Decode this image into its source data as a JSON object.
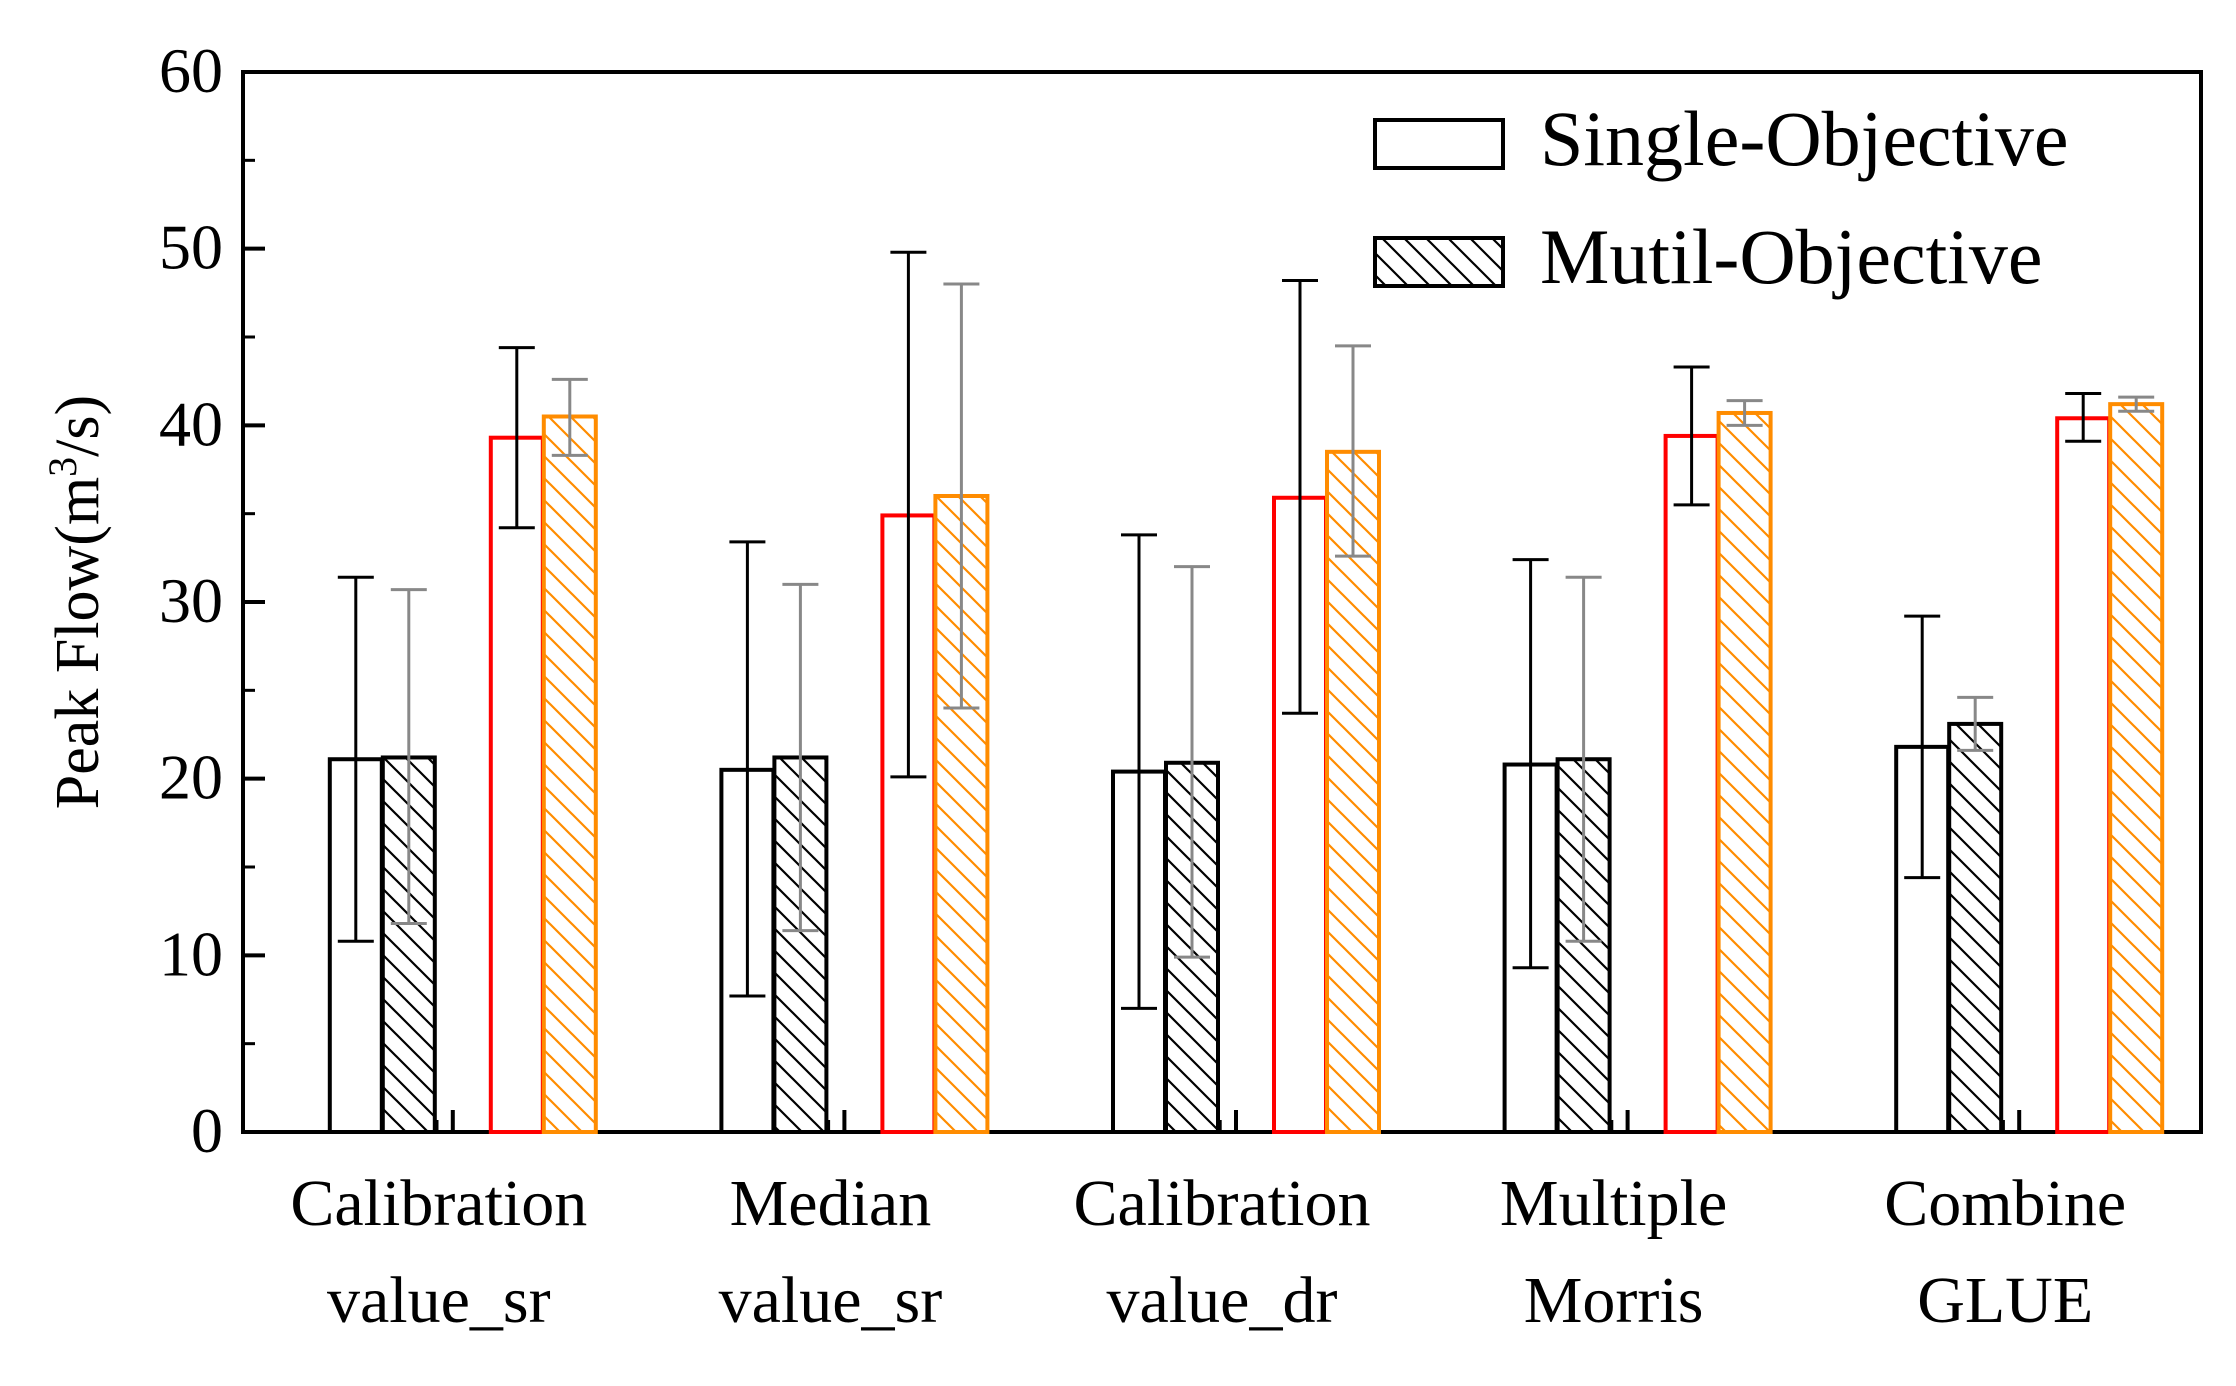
{
  "chart_data": {
    "type": "bar",
    "title": "",
    "ylabel": "Peak Flow(m³/s)",
    "ylabel_parts": {
      "before": "Peak Flow(m",
      "sup": "3",
      "after": "/s)"
    },
    "xlabel": "",
    "ylim": [
      0,
      60
    ],
    "yticks": [
      "0",
      "10",
      "20",
      "30",
      "40",
      "50",
      "60"
    ],
    "groups": [
      {
        "label_line1": "Calibration",
        "label_line2": "value_sr",
        "bars": [
          {
            "series": "Single-Objective",
            "value": 21.1,
            "err_low": 10.8,
            "err_high": 31.4,
            "color": "#000000",
            "hatch": false
          },
          {
            "series": "Mutil-Objective",
            "value": 21.2,
            "err_low": 11.8,
            "err_high": 30.7,
            "color": "#000000",
            "hatch": true,
            "err_color": "#888888"
          },
          {
            "series": "Single-Objective",
            "value": 39.3,
            "err_low": 34.2,
            "err_high": 44.4,
            "color": "#ff0000",
            "hatch": false
          },
          {
            "series": "Mutil-Objective",
            "value": 40.5,
            "err_low": 38.3,
            "err_high": 42.6,
            "color": "#ff8c00",
            "hatch": true,
            "err_color": "#888888"
          }
        ]
      },
      {
        "label_line1": "Median",
        "label_line2": "value_sr",
        "bars": [
          {
            "series": "Single-Objective",
            "value": 20.5,
            "err_low": 7.7,
            "err_high": 33.4,
            "color": "#000000",
            "hatch": false
          },
          {
            "series": "Mutil-Objective",
            "value": 21.2,
            "err_low": 11.4,
            "err_high": 31.0,
            "color": "#000000",
            "hatch": true,
            "err_color": "#888888"
          },
          {
            "series": "Single-Objective",
            "value": 34.9,
            "err_low": 20.1,
            "err_high": 49.8,
            "color": "#ff0000",
            "hatch": false
          },
          {
            "series": "Mutil-Objective",
            "value": 36.0,
            "err_low": 24.0,
            "err_high": 48.0,
            "color": "#ff8c00",
            "hatch": true,
            "err_color": "#888888"
          }
        ]
      },
      {
        "label_line1": "Calibration",
        "label_line2": "value_dr",
        "bars": [
          {
            "series": "Single-Objective",
            "value": 20.4,
            "err_low": 7.0,
            "err_high": 33.8,
            "color": "#000000",
            "hatch": false
          },
          {
            "series": "Mutil-Objective",
            "value": 20.9,
            "err_low": 9.9,
            "err_high": 32.0,
            "color": "#000000",
            "hatch": true,
            "err_color": "#888888"
          },
          {
            "series": "Single-Objective",
            "value": 35.9,
            "err_low": 23.7,
            "err_high": 48.2,
            "color": "#ff0000",
            "hatch": false
          },
          {
            "series": "Mutil-Objective",
            "value": 38.5,
            "err_low": 32.6,
            "err_high": 44.5,
            "color": "#ff8c00",
            "hatch": true,
            "err_color": "#888888"
          }
        ]
      },
      {
        "label_line1": "Multiple",
        "label_line2": "Morris",
        "bars": [
          {
            "series": "Single-Objective",
            "value": 20.8,
            "err_low": 9.3,
            "err_high": 32.4,
            "color": "#000000",
            "hatch": false
          },
          {
            "series": "Mutil-Objective",
            "value": 21.1,
            "err_low": 10.8,
            "err_high": 31.4,
            "color": "#000000",
            "hatch": true,
            "err_color": "#888888"
          },
          {
            "series": "Single-Objective",
            "value": 39.4,
            "err_low": 35.5,
            "err_high": 43.3,
            "color": "#ff0000",
            "hatch": false
          },
          {
            "series": "Mutil-Objective",
            "value": 40.7,
            "err_low": 40.0,
            "err_high": 41.4,
            "color": "#ff8c00",
            "hatch": true,
            "err_color": "#888888"
          }
        ]
      },
      {
        "label_line1": "Combine",
        "label_line2": "GLUE",
        "bars": [
          {
            "series": "Single-Objective",
            "value": 21.8,
            "err_low": 14.4,
            "err_high": 29.2,
            "color": "#000000",
            "hatch": false
          },
          {
            "series": "Mutil-Objective",
            "value": 23.1,
            "err_low": 21.6,
            "err_high": 24.6,
            "color": "#000000",
            "hatch": true,
            "err_color": "#888888"
          },
          {
            "series": "Single-Objective",
            "value": 40.4,
            "err_low": 39.1,
            "err_high": 41.8,
            "color": "#ff0000",
            "hatch": false
          },
          {
            "series": "Mutil-Objective",
            "value": 41.2,
            "err_low": 40.8,
            "err_high": 41.6,
            "color": "#ff8c00",
            "hatch": true,
            "err_color": "#888888"
          }
        ]
      }
    ],
    "legend": {
      "placement": "top-right",
      "entries": [
        {
          "label": "Single-Objective",
          "hatch": false
        },
        {
          "label": "Mutil-Objective",
          "hatch": true
        }
      ]
    }
  }
}
